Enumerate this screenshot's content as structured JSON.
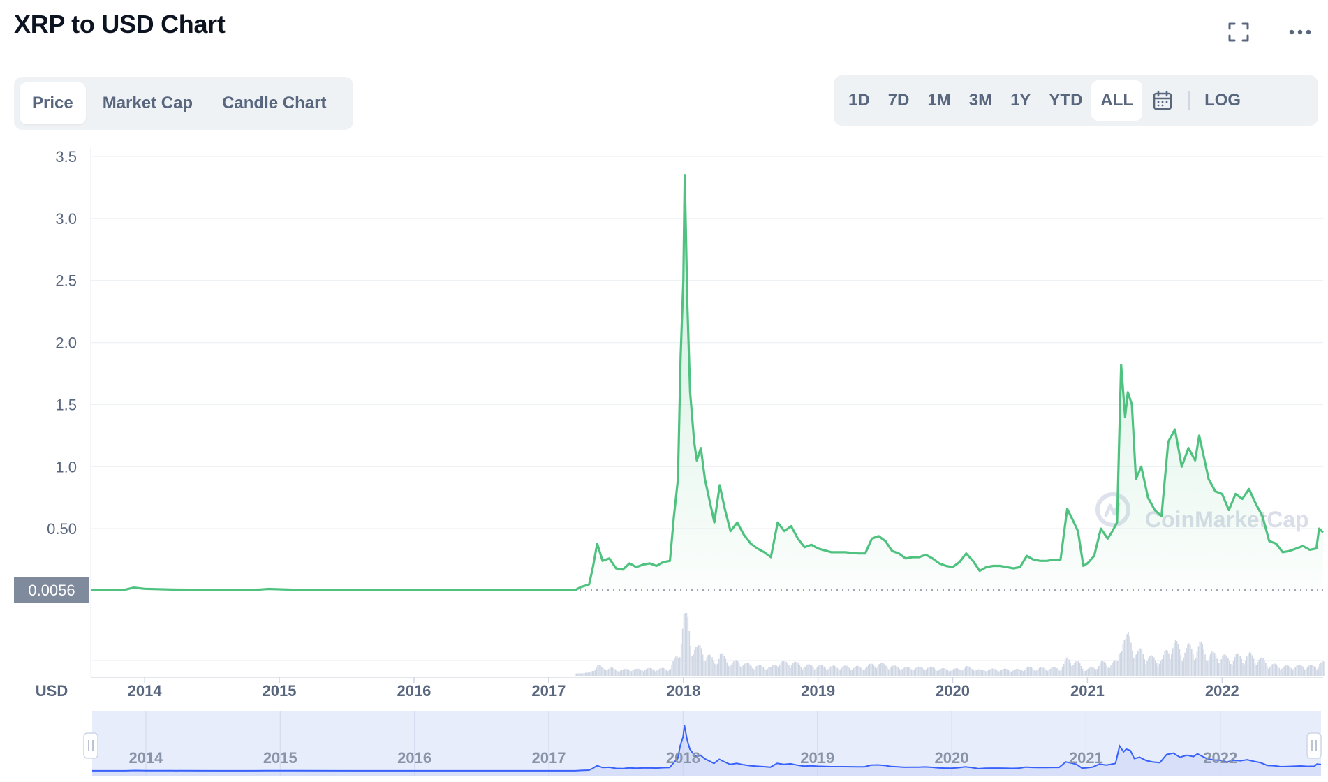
{
  "header": {
    "title": "XRP to USD Chart",
    "fullscreen_icon": "fullscreen-icon",
    "more_icon": "more-icon"
  },
  "tabs": [
    {
      "label": "Price",
      "active": true
    },
    {
      "label": "Market Cap",
      "active": false
    },
    {
      "label": "Candle Chart",
      "active": false
    }
  ],
  "ranges": [
    {
      "label": "1D",
      "active": false
    },
    {
      "label": "7D",
      "active": false
    },
    {
      "label": "1M",
      "active": false
    },
    {
      "label": "3M",
      "active": false
    },
    {
      "label": "1Y",
      "active": false
    },
    {
      "label": "YTD",
      "active": false
    },
    {
      "label": "ALL",
      "active": true
    }
  ],
  "calendar_icon": "calendar-icon",
  "log_label": "LOG",
  "watermark": "CoinMarketCap",
  "colors": {
    "line": "#4fc280",
    "volume": "#cfd6e4",
    "navigator_line": "#3861fb",
    "navigator_fill": "#e8edfb",
    "axis_text": "#58667e",
    "badge_bg": "#808a9d"
  },
  "chart_data": {
    "type": "line",
    "title": "XRP to USD Chart",
    "ylabel": "USD",
    "ylim": [
      0,
      3.5
    ],
    "yticks": [
      {
        "value": 3.5,
        "label": "3.5"
      },
      {
        "value": 3.0,
        "label": "3.0"
      },
      {
        "value": 2.5,
        "label": "2.5"
      },
      {
        "value": 2.0,
        "label": "2.0"
      },
      {
        "value": 1.5,
        "label": "1.5"
      },
      {
        "value": 1.0,
        "label": "1.0"
      },
      {
        "value": 0.5,
        "label": "0.50"
      }
    ],
    "xlim": [
      2013.6,
      2022.75
    ],
    "xticks": [
      {
        "value": 2014,
        "label": "2014"
      },
      {
        "value": 2015,
        "label": "2015"
      },
      {
        "value": 2016,
        "label": "2016"
      },
      {
        "value": 2017,
        "label": "2017"
      },
      {
        "value": 2018,
        "label": "2018"
      },
      {
        "value": 2019,
        "label": "2019"
      },
      {
        "value": 2020,
        "label": "2020"
      },
      {
        "value": 2021,
        "label": "2021"
      },
      {
        "value": 2022,
        "label": "2022"
      }
    ],
    "current_price_label": "0.0056",
    "current_price_value": 0.0056,
    "grid": true,
    "series": [
      {
        "values": [
          [
            2013.6,
            0.006
          ],
          [
            2013.85,
            0.007
          ],
          [
            2013.92,
            0.025
          ],
          [
            2014.0,
            0.015
          ],
          [
            2014.2,
            0.009
          ],
          [
            2014.5,
            0.006
          ],
          [
            2014.8,
            0.005
          ],
          [
            2014.92,
            0.014
          ],
          [
            2015.1,
            0.008
          ],
          [
            2015.5,
            0.006
          ],
          [
            2016.0,
            0.006
          ],
          [
            2016.5,
            0.006
          ],
          [
            2017.0,
            0.006
          ],
          [
            2017.2,
            0.007
          ],
          [
            2017.24,
            0.03
          ],
          [
            2017.3,
            0.05
          ],
          [
            2017.33,
            0.2
          ],
          [
            2017.36,
            0.38
          ],
          [
            2017.4,
            0.24
          ],
          [
            2017.45,
            0.26
          ],
          [
            2017.5,
            0.18
          ],
          [
            2017.55,
            0.17
          ],
          [
            2017.6,
            0.22
          ],
          [
            2017.65,
            0.19
          ],
          [
            2017.7,
            0.21
          ],
          [
            2017.75,
            0.22
          ],
          [
            2017.8,
            0.2
          ],
          [
            2017.85,
            0.23
          ],
          [
            2017.9,
            0.24
          ],
          [
            2017.93,
            0.6
          ],
          [
            2017.96,
            0.9
          ],
          [
            2017.98,
            1.9
          ],
          [
            2018.0,
            2.5
          ],
          [
            2018.01,
            3.35
          ],
          [
            2018.03,
            2.3
          ],
          [
            2018.05,
            1.6
          ],
          [
            2018.08,
            1.2
          ],
          [
            2018.1,
            1.05
          ],
          [
            2018.13,
            1.15
          ],
          [
            2018.16,
            0.9
          ],
          [
            2018.2,
            0.7
          ],
          [
            2018.23,
            0.55
          ],
          [
            2018.27,
            0.85
          ],
          [
            2018.31,
            0.65
          ],
          [
            2018.35,
            0.48
          ],
          [
            2018.4,
            0.55
          ],
          [
            2018.45,
            0.45
          ],
          [
            2018.5,
            0.38
          ],
          [
            2018.55,
            0.34
          ],
          [
            2018.6,
            0.31
          ],
          [
            2018.65,
            0.27
          ],
          [
            2018.7,
            0.55
          ],
          [
            2018.75,
            0.48
          ],
          [
            2018.8,
            0.52
          ],
          [
            2018.85,
            0.42
          ],
          [
            2018.9,
            0.35
          ],
          [
            2018.95,
            0.37
          ],
          [
            2019.0,
            0.34
          ],
          [
            2019.1,
            0.31
          ],
          [
            2019.2,
            0.31
          ],
          [
            2019.3,
            0.3
          ],
          [
            2019.35,
            0.3
          ],
          [
            2019.4,
            0.42
          ],
          [
            2019.45,
            0.44
          ],
          [
            2019.5,
            0.4
          ],
          [
            2019.55,
            0.32
          ],
          [
            2019.6,
            0.3
          ],
          [
            2019.65,
            0.26
          ],
          [
            2019.7,
            0.27
          ],
          [
            2019.75,
            0.27
          ],
          [
            2019.8,
            0.29
          ],
          [
            2019.85,
            0.26
          ],
          [
            2019.9,
            0.22
          ],
          [
            2019.95,
            0.2
          ],
          [
            2020.0,
            0.19
          ],
          [
            2020.05,
            0.23
          ],
          [
            2020.1,
            0.3
          ],
          [
            2020.15,
            0.24
          ],
          [
            2020.2,
            0.16
          ],
          [
            2020.25,
            0.19
          ],
          [
            2020.3,
            0.2
          ],
          [
            2020.35,
            0.2
          ],
          [
            2020.4,
            0.19
          ],
          [
            2020.45,
            0.18
          ],
          [
            2020.5,
            0.19
          ],
          [
            2020.55,
            0.28
          ],
          [
            2020.6,
            0.25
          ],
          [
            2020.65,
            0.24
          ],
          [
            2020.7,
            0.24
          ],
          [
            2020.75,
            0.25
          ],
          [
            2020.8,
            0.25
          ],
          [
            2020.85,
            0.66
          ],
          [
            2020.9,
            0.55
          ],
          [
            2020.93,
            0.48
          ],
          [
            2020.97,
            0.2
          ],
          [
            2021.0,
            0.22
          ],
          [
            2021.05,
            0.28
          ],
          [
            2021.1,
            0.5
          ],
          [
            2021.15,
            0.42
          ],
          [
            2021.18,
            0.47
          ],
          [
            2021.22,
            0.55
          ],
          [
            2021.25,
            1.82
          ],
          [
            2021.28,
            1.4
          ],
          [
            2021.3,
            1.6
          ],
          [
            2021.33,
            1.5
          ],
          [
            2021.36,
            0.9
          ],
          [
            2021.4,
            1.0
          ],
          [
            2021.45,
            0.75
          ],
          [
            2021.5,
            0.65
          ],
          [
            2021.55,
            0.6
          ],
          [
            2021.6,
            1.2
          ],
          [
            2021.65,
            1.3
          ],
          [
            2021.7,
            1.0
          ],
          [
            2021.75,
            1.15
          ],
          [
            2021.8,
            1.05
          ],
          [
            2021.83,
            1.25
          ],
          [
            2021.87,
            1.05
          ],
          [
            2021.9,
            0.9
          ],
          [
            2021.95,
            0.8
          ],
          [
            2022.0,
            0.78
          ],
          [
            2022.05,
            0.65
          ],
          [
            2022.1,
            0.78
          ],
          [
            2022.15,
            0.74
          ],
          [
            2022.2,
            0.82
          ],
          [
            2022.25,
            0.7
          ],
          [
            2022.3,
            0.6
          ],
          [
            2022.35,
            0.4
          ],
          [
            2022.4,
            0.38
          ],
          [
            2022.45,
            0.31
          ],
          [
            2022.5,
            0.32
          ],
          [
            2022.55,
            0.34
          ],
          [
            2022.6,
            0.36
          ],
          [
            2022.65,
            0.33
          ],
          [
            2022.7,
            0.34
          ],
          [
            2022.72,
            0.5
          ],
          [
            2022.75,
            0.47
          ]
        ]
      }
    ]
  }
}
